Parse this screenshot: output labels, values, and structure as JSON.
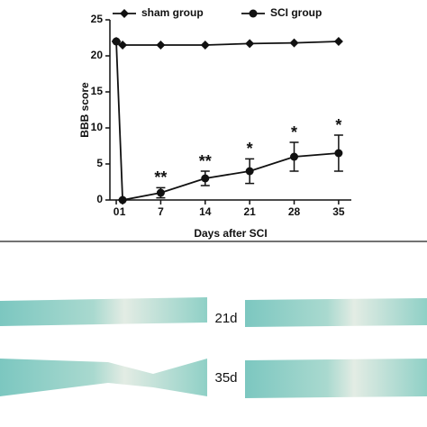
{
  "chart_data": {
    "type": "line",
    "x_label": "Days after SCI",
    "y_label": "BBB score",
    "x": [
      0,
      1,
      7,
      14,
      21,
      28,
      35
    ],
    "series": [
      {
        "name": "sham group",
        "color": "#111111",
        "marker": "diamond",
        "values": [
          22,
          21.5,
          21.5,
          21.5,
          21.7,
          21.8,
          22
        ]
      },
      {
        "name": "SCI group",
        "color": "#111111",
        "marker": "circle",
        "values": [
          22,
          0,
          1,
          3,
          4,
          6,
          6.5
        ],
        "errors": [
          0,
          0,
          0.7,
          1,
          1.7,
          2,
          2.5
        ]
      }
    ],
    "annotations": [
      {
        "x": 7,
        "text": "**"
      },
      {
        "x": 14,
        "text": "**"
      },
      {
        "x": 21,
        "text": "*"
      },
      {
        "x": 28,
        "text": "*"
      },
      {
        "x": 35,
        "text": "*"
      }
    ],
    "xlim": [
      -1,
      37
    ],
    "xticks": [
      0,
      1,
      7,
      14,
      21,
      28,
      35
    ],
    "ylim": [
      0,
      25
    ],
    "yticks": [
      0,
      5,
      10,
      15,
      20,
      25
    ],
    "grid": false
  },
  "images": {
    "labels": [
      "21d",
      "35d"
    ]
  }
}
